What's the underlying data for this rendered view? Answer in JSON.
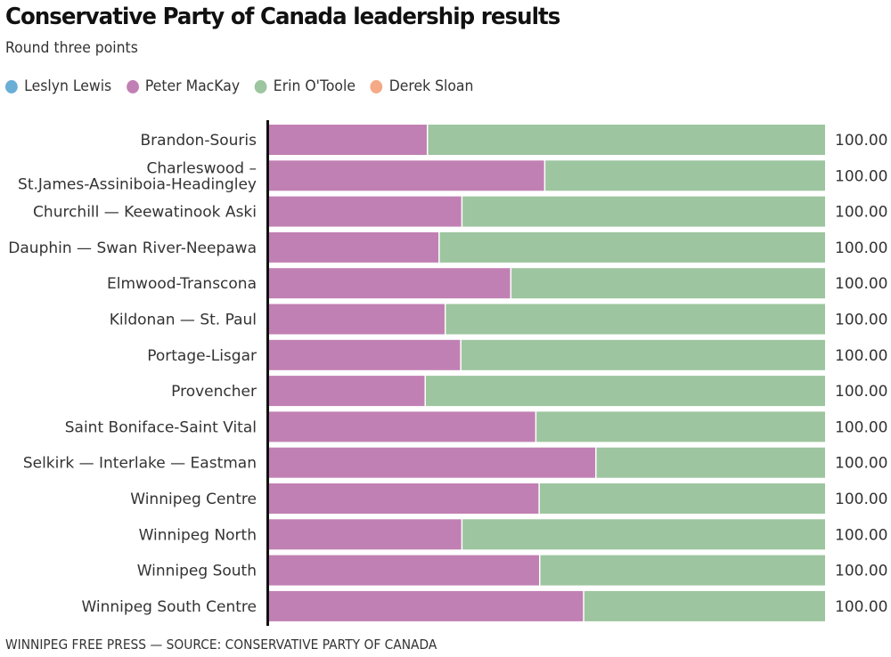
{
  "chart_data": {
    "type": "bar",
    "orientation": "horizontal",
    "stacked": true,
    "title": "Conservative Party of Canada leadership results",
    "subtitle": "Round three points",
    "xlabel": "",
    "ylabel": "",
    "xlim": [
      0,
      100
    ],
    "grid": false,
    "legend_position": "top-left",
    "categories": [
      [
        "Brandon-Souris"
      ],
      [
        "Charleswood –",
        "St.James-Assiniboia-Headingley"
      ],
      [
        "Churchill — Keewatinook Aski"
      ],
      [
        "Dauphin — Swan River-Neepawa"
      ],
      [
        "Elmwood-Transcona"
      ],
      [
        "Kildonan — St. Paul"
      ],
      [
        "Portage-Lisgar"
      ],
      [
        "Provencher"
      ],
      [
        "Saint Boniface-Saint Vital"
      ],
      [
        "Selkirk — Interlake — Eastman"
      ],
      [
        "Winnipeg Centre"
      ],
      [
        "Winnipeg North"
      ],
      [
        "Winnipeg South"
      ],
      [
        "Winnipeg South Centre"
      ]
    ],
    "series": [
      {
        "name": "Leslyn Lewis",
        "color": "#6aaed6",
        "values": [
          0,
          0,
          0,
          0,
          0,
          0,
          0,
          0,
          0,
          0,
          0,
          0,
          0,
          0
        ]
      },
      {
        "name": "Peter MacKay",
        "color": "#c180b3",
        "values": [
          28.6,
          49.7,
          34.8,
          30.7,
          43.6,
          31.8,
          34.6,
          28.2,
          48.1,
          58.9,
          48.7,
          34.8,
          48.8,
          56.7
        ]
      },
      {
        "name": "Erin O'Toole",
        "color": "#9dc59f",
        "values": [
          71.4,
          50.3,
          65.2,
          69.3,
          56.4,
          68.2,
          65.4,
          71.8,
          51.9,
          41.1,
          51.3,
          65.2,
          51.2,
          43.3
        ]
      },
      {
        "name": "Derek Sloan",
        "color": "#f5a987",
        "values": [
          0,
          0,
          0,
          0,
          0,
          0,
          0,
          0,
          0,
          0,
          0,
          0,
          0,
          0
        ]
      }
    ],
    "totals": [
      "100.00",
      "100.00",
      "100.00",
      "100.00",
      "100.00",
      "100.00",
      "100.00",
      "100.00",
      "100.00",
      "100.00",
      "100.00",
      "100.00",
      "100.00",
      "100.00"
    ],
    "footer": "WINNIPEG FREE PRESS — SOURCE: CONSERVATIVE PARTY OF CANADA"
  },
  "axis_color": "#111111"
}
